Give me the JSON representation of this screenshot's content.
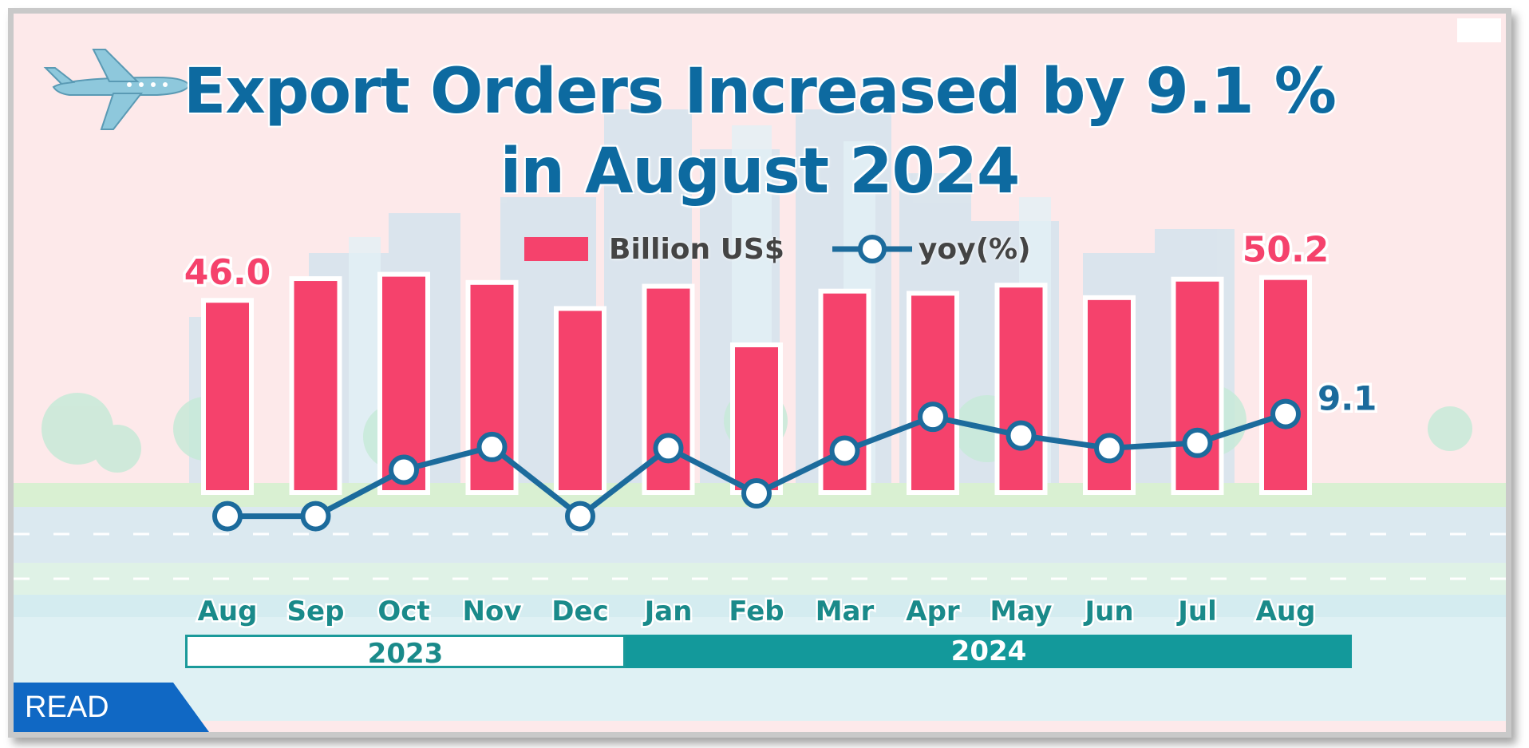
{
  "title_line1": "Export Orders Increased by 9.1 %",
  "title_line2": "in August 2024",
  "legend": {
    "bar_label": "Billion US$",
    "line_label": "yoy(%)"
  },
  "read_label": "READ",
  "years": {
    "first": "2023",
    "second": "2024"
  },
  "colors": {
    "bar": "#f5426c",
    "line": "#1c6b9c",
    "title": "#0d6aa0",
    "band_2024": "#13999b",
    "badge": "#1068c4"
  },
  "icons": [
    "airplane-icon",
    "city-skyline-illustration"
  ],
  "chart_data": {
    "type": "bar",
    "categories": [
      "Aug",
      "Sep",
      "Oct",
      "Nov",
      "Dec",
      "Jan",
      "Feb",
      "Mar",
      "Apr",
      "May",
      "Jun",
      "Jul",
      "Aug"
    ],
    "series": [
      {
        "name": "Billion US$",
        "type": "bar",
        "values": [
          46.0,
          50.0,
          50.8,
          49.3,
          44.5,
          48.6,
          37.8,
          47.7,
          47.3,
          48.8,
          46.5,
          49.9,
          50.2
        ]
      },
      {
        "name": "yoy(%)",
        "type": "line",
        "values": [
          -16.0,
          -16.0,
          -4.6,
          1.0,
          -16.0,
          0.7,
          -10.4,
          0.1,
          8.4,
          3.8,
          0.7,
          2.0,
          9.1
        ]
      }
    ],
    "data_labels": {
      "first_bar": "46.0",
      "last_bar": "50.2",
      "last_line": "9.1"
    },
    "title": "Export Orders Increased by 9.1 % in August 2024",
    "legend_position": "top-center",
    "grid": false
  }
}
